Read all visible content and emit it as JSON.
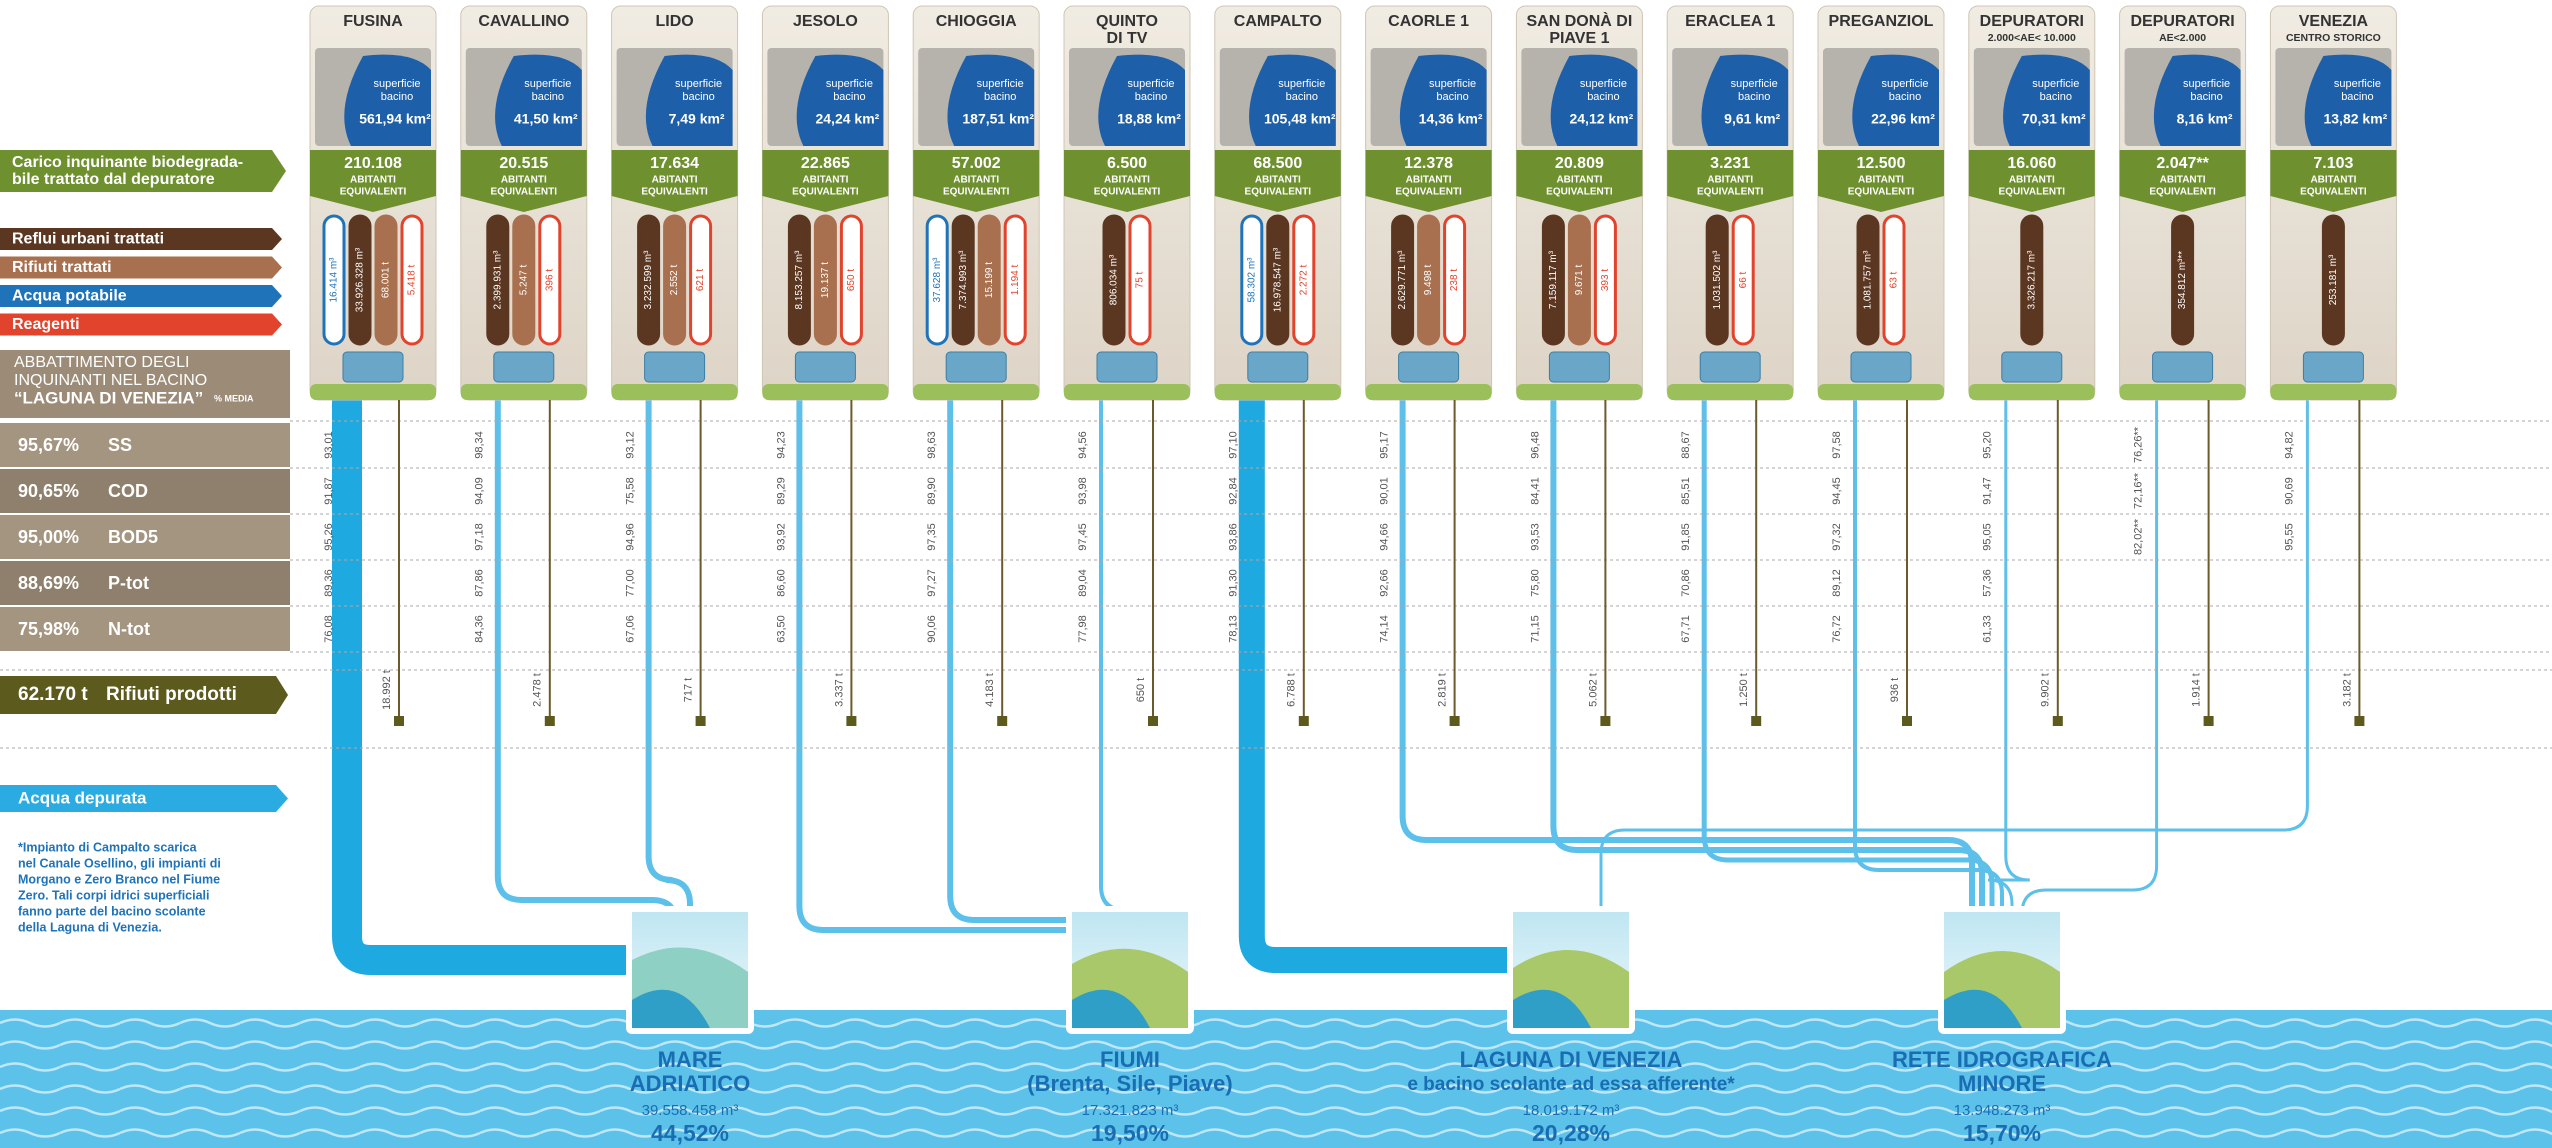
{
  "legend": {
    "load": [
      "Carico inquinante biodegrada-",
      "bile trattato dal depuratore"
    ],
    "flows": [
      {
        "name": "Reflui urbani trattati",
        "color": "#5b3621"
      },
      {
        "name": "Rifiuti trattati",
        "color": "#a8704e"
      },
      {
        "name": "Acqua potabile",
        "color": "#1f73b9"
      },
      {
        "name": "Reagenti",
        "color": "#e2432c"
      }
    ],
    "abatement_title": [
      "ABBATTIMENTO DEGLI",
      "INQUINANTI NEL BACINO",
      "“LAGUNA DI VENEZIA”"
    ],
    "abatement_note": "% MEDIA",
    "abatement_rows": [
      {
        "pct": "95,67%",
        "name": "SS"
      },
      {
        "pct": "90,65%",
        "name": "COD"
      },
      {
        "pct": "95,00%",
        "name": "BOD5"
      },
      {
        "pct": "88,69%",
        "name": "P-tot"
      },
      {
        "pct": "75,98%",
        "name": "N-tot"
      }
    ],
    "waste_total": "62.170 t",
    "waste_label": "Rifiuti prodotti",
    "clean_water": "Acqua depurata",
    "footnote": [
      "*Impianto di Campalto scarica",
      "nel Canale Osellino, gli impianti di",
      "Morgano e Zero Branco nel Fiume",
      "Zero. Tali corpi idrici superficiali",
      "fanno parte del bacino scolante",
      "della Laguna di Venezia."
    ]
  },
  "area_label": [
    "superficie",
    "bacino"
  ],
  "ae_label": [
    "ABITANTI",
    "EQUIVALENTI"
  ],
  "plants": [
    {
      "name": [
        "FUSINA"
      ],
      "area": "561,94 km²",
      "ae": "210.108",
      "flows": [
        {
          "type": 2,
          "value": "16.414 m³"
        },
        {
          "type": 0,
          "value": "33.926.328 m³"
        },
        {
          "type": 1,
          "value": "68.001 t"
        },
        {
          "type": 3,
          "value": "5.418 t"
        }
      ],
      "abatement": [
        "93,01",
        "91,87",
        "95,26",
        "89,36",
        "76,08"
      ],
      "waste": "18.992 t"
    },
    {
      "name": [
        "CAVALLINO"
      ],
      "area": "41,50 km²",
      "ae": "20.515",
      "flows": [
        {
          "type": 0,
          "value": "2.399.931 m³"
        },
        {
          "type": 1,
          "value": "5.247 t"
        },
        {
          "type": 3,
          "value": "396 t"
        }
      ],
      "abatement": [
        "98,34",
        "94,09",
        "97,18",
        "87,86",
        "84,36"
      ],
      "waste": "2.478 t"
    },
    {
      "name": [
        "LIDO"
      ],
      "area": "7,49 km²",
      "ae": "17.634",
      "flows": [
        {
          "type": 0,
          "value": "3.232.599 m³"
        },
        {
          "type": 1,
          "value": "2.552 t"
        },
        {
          "type": 3,
          "value": "621 t"
        }
      ],
      "abatement": [
        "93,12",
        "75,58",
        "94,96",
        "77,00",
        "67,06"
      ],
      "waste": "717 t"
    },
    {
      "name": [
        "JESOLO"
      ],
      "area": "24,24 km²",
      "ae": "22.865",
      "flows": [
        {
          "type": 0,
          "value": "8.153.257 m³"
        },
        {
          "type": 1,
          "value": "19.137 t"
        },
        {
          "type": 3,
          "value": "650 t"
        }
      ],
      "abatement": [
        "94,23",
        "89,29",
        "93,92",
        "86,60",
        "63,50"
      ],
      "waste": "3.337 t"
    },
    {
      "name": [
        "CHIOGGIA"
      ],
      "area": "187,51 km²",
      "ae": "57.002",
      "flows": [
        {
          "type": 2,
          "value": "37.628 m³"
        },
        {
          "type": 0,
          "value": "7.374.993 m³"
        },
        {
          "type": 1,
          "value": "15.199 t"
        },
        {
          "type": 3,
          "value": "1.194 t"
        }
      ],
      "abatement": [
        "98,63",
        "89,90",
        "97,35",
        "97,27",
        "90,06"
      ],
      "waste": "4.183 t"
    },
    {
      "name": [
        "QUINTO",
        "DI TV"
      ],
      "area": "18,88 km²",
      "ae": "6.500",
      "flows": [
        {
          "type": 0,
          "value": "806.034 m³"
        },
        {
          "type": 3,
          "value": "75 t"
        }
      ],
      "abatement": [
        "94,56",
        "93,98",
        "97,45",
        "89,04",
        "77,98"
      ],
      "waste": "650 t"
    },
    {
      "name": [
        "CAMPALTO"
      ],
      "area": "105,48 km²",
      "ae": "68.500",
      "flows": [
        {
          "type": 2,
          "value": "58.302 m³"
        },
        {
          "type": 0,
          "value": "16.978.547 m³"
        },
        {
          "type": 3,
          "value": "2.272 t"
        }
      ],
      "abatement": [
        "97,10",
        "92,84",
        "93,86",
        "91,30",
        "78,13"
      ],
      "waste": "6.788 t"
    },
    {
      "name": [
        "CAORLE 1"
      ],
      "area": "14,36 km²",
      "ae": "12.378",
      "flows": [
        {
          "type": 0,
          "value": "2.629.771 m³"
        },
        {
          "type": 1,
          "value": "9.498 t"
        },
        {
          "type": 3,
          "value": "238 t"
        }
      ],
      "abatement": [
        "95,17",
        "90,01",
        "94,66",
        "92,66",
        "74,14"
      ],
      "waste": "2.819 t"
    },
    {
      "name": [
        "SAN DONÀ DI",
        "PIAVE 1"
      ],
      "area": "24,12 km²",
      "ae": "20.809",
      "flows": [
        {
          "type": 0,
          "value": "7.159.117 m³"
        },
        {
          "type": 1,
          "value": "9.671 t"
        },
        {
          "type": 3,
          "value": "393 t"
        }
      ],
      "abatement": [
        "96,48",
        "84,41",
        "93,53",
        "75,80",
        "71,15"
      ],
      "waste": "5.062 t"
    },
    {
      "name": [
        "ERACLEA 1"
      ],
      "area": "9,61 km²",
      "ae": "3.231",
      "flows": [
        {
          "type": 0,
          "value": "1.031.502 m³"
        },
        {
          "type": 3,
          "value": "66 t"
        }
      ],
      "abatement": [
        "88,67",
        "85,51",
        "91,85",
        "70,86",
        "67,71"
      ],
      "waste": "1.250 t"
    },
    {
      "name": [
        "PREGANZIOL"
      ],
      "area": "22,96 km²",
      "ae": "12.500",
      "flows": [
        {
          "type": 0,
          "value": "1.081.757 m³"
        },
        {
          "type": 3,
          "value": "63 t"
        }
      ],
      "abatement": [
        "97,58",
        "94,45",
        "97,32",
        "89,12",
        "76,72"
      ],
      "waste": "936 t"
    },
    {
      "name": [
        "DEPURATORI"
      ],
      "sub": "2.000<AE< 10.000",
      "area": "70,31 km²",
      "ae": "16.060",
      "flows": [
        {
          "type": 0,
          "value": "3.326.217 m³"
        }
      ],
      "abatement": [
        "95,20",
        "91,47",
        "95,05",
        "57,36",
        "61,33"
      ],
      "waste": "9.902 t"
    },
    {
      "name": [
        "DEPURATORI"
      ],
      "sub": "AE<2.000",
      "area": "8,16 km²",
      "ae": "2.047**",
      "flows": [
        {
          "type": 0,
          "value": "354.812 m³**"
        }
      ],
      "abatement": [
        "76,26**",
        "72,16**",
        "82,02**"
      ],
      "waste": "1.914 t"
    },
    {
      "name": [
        "VENEZIA"
      ],
      "sub": "CENTRO STORICO",
      "area": "13,82 km²",
      "ae": "7.103",
      "flows": [
        {
          "type": 0,
          "value": "253.181 m³"
        }
      ],
      "abatement": [
        "94,82",
        "90,69",
        "95,55"
      ],
      "waste": "3.182 t"
    }
  ],
  "destinations": [
    {
      "name": [
        "MARE",
        "ADRIATICO"
      ],
      "volume": "39.558.458 m³",
      "share": "44,52%"
    },
    {
      "name": [
        "FIUMI",
        "(Brenta, Sile, Piave)"
      ],
      "volume": "17.321.823 m³",
      "share": "19,50%"
    },
    {
      "name": [
        "LAGUNA DI VENEZIA",
        "e bacino scolante ad essa afferente*"
      ],
      "volume": "18.019.172 m³",
      "share": "20,28%"
    },
    {
      "name": [
        "RETE IDROGRAFICA",
        "MINORE"
      ],
      "volume": "13.948.273 m³",
      "share": "15,70%"
    }
  ]
}
